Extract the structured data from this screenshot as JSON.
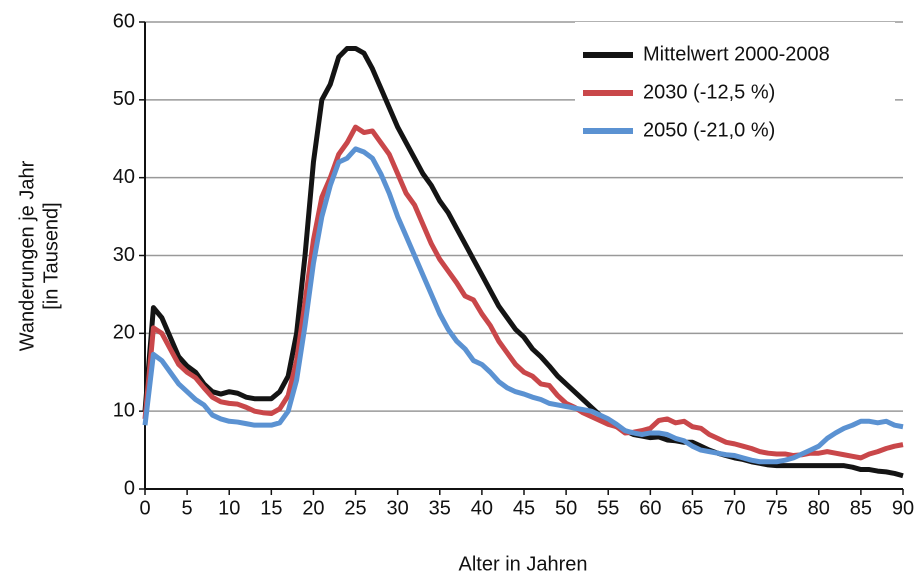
{
  "chart_data": {
    "type": "line",
    "xlabel": "Alter in Jahren",
    "ylabel": [
      "Wanderungen je Jahr",
      "[in Tausend]"
    ],
    "x": [
      0,
      1,
      2,
      3,
      4,
      5,
      6,
      7,
      8,
      9,
      10,
      11,
      12,
      13,
      14,
      15,
      16,
      17,
      18,
      19,
      20,
      21,
      22,
      23,
      24,
      25,
      26,
      27,
      28,
      29,
      30,
      31,
      32,
      33,
      34,
      35,
      36,
      37,
      38,
      39,
      40,
      41,
      42,
      43,
      44,
      45,
      46,
      47,
      48,
      49,
      50,
      51,
      52,
      53,
      54,
      55,
      56,
      57,
      58,
      59,
      60,
      61,
      62,
      63,
      64,
      65,
      66,
      67,
      68,
      69,
      70,
      71,
      72,
      73,
      74,
      75,
      76,
      77,
      78,
      79,
      80,
      81,
      82,
      83,
      84,
      85,
      86,
      87,
      88,
      89,
      90
    ],
    "series": [
      {
        "name": "Mittelwert 2000-2008",
        "color": "#141414",
        "values": [
          10,
          23.3,
          22,
          19.5,
          17,
          15.8,
          15,
          13.5,
          12.5,
          12.2,
          12.5,
          12.3,
          11.8,
          11.6,
          11.6,
          11.6,
          12.5,
          14.5,
          20,
          30,
          42,
          50,
          52,
          55.5,
          56.6,
          56.6,
          56,
          54,
          51.5,
          49,
          46.5,
          44.5,
          42.5,
          40.5,
          39,
          37,
          35.5,
          33.5,
          31.5,
          29.5,
          27.5,
          25.5,
          23.5,
          22,
          20.5,
          19.5,
          18,
          17,
          15.8,
          14.5,
          13.5,
          12.5,
          11.5,
          10.5,
          9.5,
          8.5,
          8,
          7.5,
          7,
          6.8,
          6.6,
          6.7,
          6.3,
          6.2,
          6,
          6,
          5.5,
          5,
          4.6,
          4.3,
          4,
          3.8,
          3.5,
          3.3,
          3.1,
          3,
          3,
          3,
          3,
          3,
          3,
          3,
          3,
          3,
          2.8,
          2.5,
          2.5,
          2.3,
          2.2,
          2,
          1.7
        ]
      },
      {
        "name": "2030 (-12,5 %)",
        "color": "#c9474a",
        "values": [
          9,
          20.7,
          20,
          18,
          16,
          15,
          14.3,
          13,
          11.8,
          11.2,
          11,
          10.9,
          10.5,
          10,
          9.8,
          9.7,
          10.3,
          12,
          16.5,
          24,
          32,
          37.5,
          40,
          43,
          44.5,
          46.5,
          45.8,
          46,
          44.5,
          43,
          40.5,
          38,
          36.5,
          34,
          31.5,
          29.5,
          28,
          26.5,
          24.8,
          24.3,
          22.5,
          21,
          19,
          17.5,
          16,
          15,
          14.5,
          13.5,
          13.3,
          12,
          11,
          10.5,
          9.8,
          9.3,
          8.8,
          8.3,
          8,
          7.2,
          7.3,
          7.5,
          7.8,
          8.8,
          9,
          8.5,
          8.7,
          8,
          7.8,
          7,
          6.5,
          6,
          5.8,
          5.5,
          5.2,
          4.8,
          4.6,
          4.5,
          4.5,
          4.3,
          4.4,
          4.6,
          4.6,
          4.8,
          4.6,
          4.4,
          4.2,
          4,
          4.5,
          4.8,
          5.2,
          5.5,
          5.7
        ]
      },
      {
        "name": "2050 (-21,0 %)",
        "color": "#5b92d2",
        "values": [
          8.2,
          17.3,
          16.5,
          15,
          13.5,
          12.5,
          11.5,
          10.8,
          9.5,
          9,
          8.7,
          8.6,
          8.4,
          8.2,
          8.2,
          8.2,
          8.5,
          10,
          14,
          21,
          29,
          35,
          39,
          42,
          42.5,
          43.7,
          43.3,
          42.5,
          40.5,
          38,
          35,
          32.5,
          30,
          27.5,
          25,
          22.5,
          20.5,
          19,
          18,
          16.5,
          16,
          15,
          13.8,
          13,
          12.5,
          12.2,
          11.8,
          11.5,
          11,
          10.8,
          10.6,
          10.4,
          10.2,
          10,
          9.5,
          9,
          8.3,
          7.5,
          7.2,
          7,
          7.2,
          7.2,
          7,
          6.5,
          6.2,
          5.5,
          5,
          4.8,
          4.6,
          4.4,
          4.3,
          4,
          3.7,
          3.5,
          3.5,
          3.5,
          3.7,
          4,
          4.5,
          5,
          5.5,
          6.5,
          7.2,
          7.8,
          8.2,
          8.7,
          8.7,
          8.5,
          8.7,
          8.2,
          8
        ]
      }
    ],
    "xlim": [
      0,
      90
    ],
    "xticks": [
      0,
      5,
      10,
      15,
      20,
      25,
      30,
      35,
      40,
      45,
      50,
      55,
      60,
      65,
      70,
      75,
      80,
      85,
      90
    ],
    "ylim": [
      0,
      60
    ],
    "yticks": [
      0,
      10,
      20,
      30,
      40,
      50,
      60
    ],
    "grid": true,
    "legend": "top-right"
  }
}
